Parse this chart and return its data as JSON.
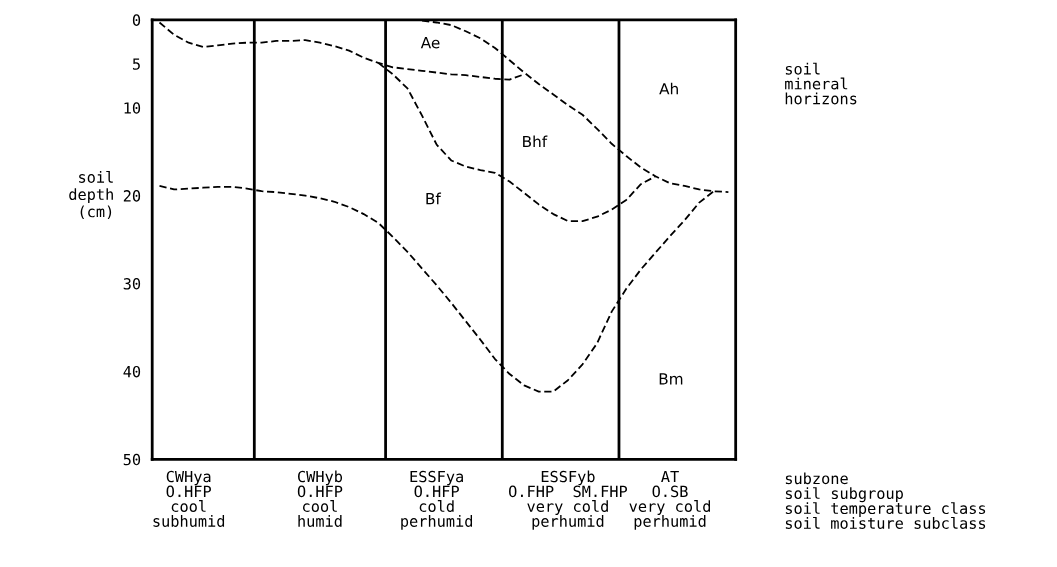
{
  "chart_data": {
    "type": "line",
    "ylabel": "soil\ndepth\n(cm)",
    "categories": [
      null,
      null,
      "CWHya\nO.HFP\ncool\nsubhumid",
      null,
      null,
      null,
      null,
      null,
      null,
      null,
      null,
      "CWHyb\nO.HFP\ncool\nhumid",
      null,
      null,
      null,
      null,
      null,
      null,
      null,
      "ESSFya\nO.HFP\ncold\nperhumid",
      null,
      null,
      null,
      null,
      null,
      null,
      null,
      null,
      "ESSFyb\nO.FHP  SM.FHP\nvery cold\nperhumid",
      null,
      null,
      null,
      null,
      null,
      null,
      "AT\nO.SB\nvery cold\nperhumid",
      null,
      null,
      null,
      null
    ],
    "ylim": [
      50,
      0
    ],
    "yticks": [
      0,
      5,
      10,
      20,
      30,
      40,
      50
    ],
    "line_style": "dashed",
    "marker": "none",
    "series": [
      {
        "color": "#000000",
        "values": [
          0.3,
          1.7,
          2.6,
          3.1,
          2.9,
          2.7,
          2.6,
          2.6,
          2.4,
          2.4,
          2.3,
          2.6,
          3.0,
          3.5,
          4.3,
          4.9,
          5.4,
          5.6,
          5.8,
          6.0,
          6.2,
          6.3,
          6.5,
          6.7,
          6.8,
          6.2,
          null,
          null,
          null,
          null,
          null,
          null,
          null,
          null,
          null,
          null,
          null,
          null,
          null,
          null
        ]
      },
      {
        "color": "#000000",
        "values": [
          null,
          null,
          null,
          null,
          null,
          null,
          null,
          null,
          null,
          null,
          null,
          null,
          null,
          null,
          null,
          null,
          null,
          null,
          0.1,
          0.3,
          0.6,
          1.3,
          2.1,
          3.2,
          4.6,
          6.0,
          7.3,
          8.5,
          9.7,
          10.8,
          12.4,
          14.1,
          15.5,
          16.8,
          17.8,
          18.6,
          18.9,
          19.3,
          19.5,
          19.6
        ]
      },
      {
        "color": "#000000",
        "values": [
          null,
          null,
          null,
          null,
          null,
          null,
          null,
          null,
          null,
          null,
          null,
          null,
          null,
          null,
          null,
          4.9,
          6.2,
          7.8,
          10.9,
          14.2,
          16.0,
          16.7,
          17.1,
          17.4,
          18.4,
          19.7,
          21.0,
          22.1,
          22.9,
          22.9,
          22.4,
          21.6,
          20.5,
          18.7,
          17.8,
          null,
          null,
          null,
          null,
          null
        ]
      },
      {
        "color": "#000000",
        "values": [
          18.9,
          19.3,
          19.2,
          19.1,
          19.0,
          19.0,
          19.2,
          19.5,
          19.6,
          19.8,
          20.0,
          20.3,
          20.7,
          21.3,
          22.1,
          23.1,
          24.7,
          26.4,
          28.3,
          30.2,
          32.2,
          34.3,
          36.4,
          38.6,
          40.3,
          41.6,
          42.3,
          42.3,
          41.0,
          39.2,
          36.8,
          33.2,
          30.6,
          28.4,
          26.5,
          24.6,
          22.8,
          20.8,
          19.5,
          null
        ]
      }
    ],
    "annotations": [
      "Ae",
      "Ah",
      "Bhf",
      "Bf",
      "Bm",
      "soil\nmineral\nhorizons",
      "subzone\nsoil subgroup\nsoil temperature class\nsoil moisture subclass"
    ]
  }
}
